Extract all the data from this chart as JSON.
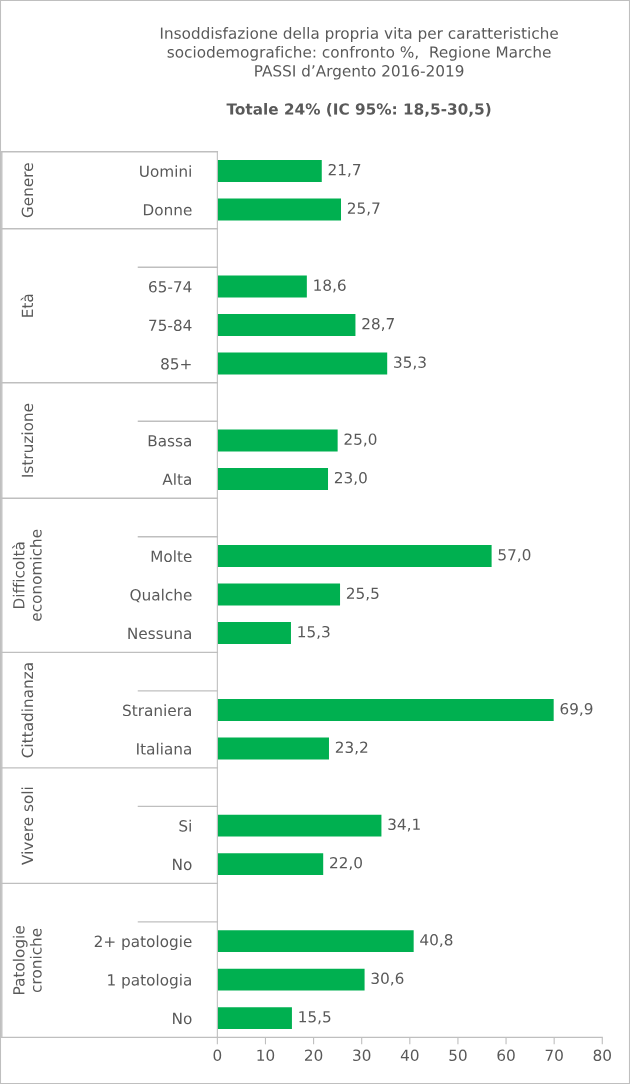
{
  "chart_data": {
    "type": "bar",
    "orientation": "horizontal",
    "title": "Insoddisfazione della propria vita per caratteristiche\nsociodemografiche: confronto %,  Regione Marche\nPASSI d’Argento 2016-2019",
    "subtitle": "Totale 24% (IC 95%: 18,5-30,5)",
    "categories": [
      "Uomini",
      "Donne",
      null,
      "65-74",
      "75-84",
      "85+",
      null,
      "Bassa",
      "Alta",
      null,
      "Molte",
      "Qualche",
      "Nessuna",
      null,
      "Straniera",
      "Italiana",
      null,
      "Si",
      "No",
      null,
      "2+ patologie",
      "1 patologia",
      "No"
    ],
    "values": [
      21.7,
      25.7,
      null,
      18.6,
      28.7,
      35.3,
      null,
      25.0,
      23.0,
      null,
      57.0,
      25.5,
      15.3,
      null,
      69.9,
      23.2,
      null,
      34.1,
      22.0,
      null,
      40.8,
      30.6,
      15.5
    ],
    "value_labels": [
      "21,7",
      "25,7",
      null,
      "18,6",
      "28,7",
      "35,3",
      null,
      "25,0",
      "23,0",
      null,
      "57,0",
      "25,5",
      "15,3",
      null,
      "69,9",
      "23,2",
      null,
      "34,1",
      "22,0",
      null,
      "40,8",
      "30,6",
      "15,5"
    ],
    "color": "#00b050",
    "annotations": [
      "Genere",
      "Età",
      "Istruzione",
      "Difficoltà\neconomiche",
      "Cittadinanza",
      "Vivere soli",
      "Patologie\ncroniche"
    ],
    "xlim": [
      0,
      80
    ],
    "xticks": [
      0,
      10,
      20,
      30,
      40,
      50,
      60,
      70,
      80
    ],
    "grid": false
  }
}
